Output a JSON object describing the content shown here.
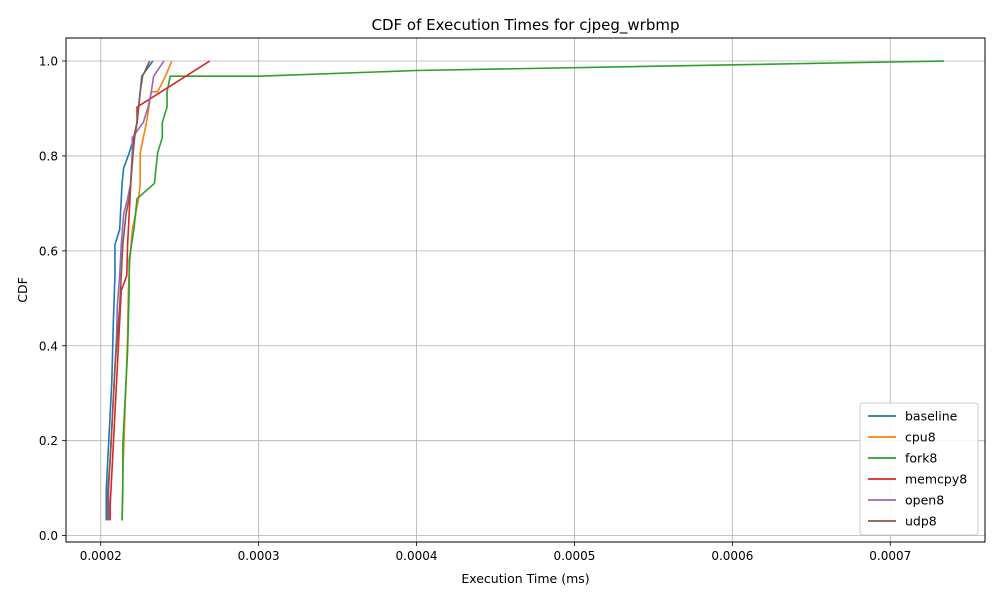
{
  "chart_data": {
    "type": "line",
    "title": "CDF of Execution Times for cjpeg_wrbmp",
    "xlabel": "Execution Time (ms)",
    "ylabel": "CDF",
    "xlim": [
      0.000178,
      0.00076
    ],
    "ylim": [
      -0.0135,
      1.0485
    ],
    "xticks": [
      "0.0002",
      "0.0003",
      "0.0004",
      "0.0005",
      "0.0006",
      "0.0007"
    ],
    "xtick_values": [
      0.0002,
      0.0003,
      0.0004,
      0.0005,
      0.0006,
      0.0007
    ],
    "yticks": [
      "0.0",
      "0.2",
      "0.4",
      "0.6",
      "0.8",
      "1.0"
    ],
    "ytick_values": [
      0.0,
      0.2,
      0.4,
      0.6,
      0.8,
      1.0
    ],
    "grid": true,
    "legend_position": "lower right",
    "series": [
      {
        "name": "baseline",
        "color": "#1f77b4",
        "points": [
          [
            0.0002035,
            0.032
          ],
          [
            0.0002035,
            0.097
          ],
          [
            0.000204,
            0.129
          ],
          [
            0.000205,
            0.194
          ],
          [
            0.000206,
            0.258
          ],
          [
            0.000207,
            0.323
          ],
          [
            0.0002075,
            0.387
          ],
          [
            0.000208,
            0.452
          ],
          [
            0.000209,
            0.548
          ],
          [
            0.000209,
            0.613
          ],
          [
            0.000212,
            0.645
          ],
          [
            0.0002135,
            0.742
          ],
          [
            0.0002145,
            0.774
          ],
          [
            0.000218,
            0.806
          ],
          [
            0.000221,
            0.839
          ],
          [
            0.000223,
            0.871
          ],
          [
            0.000225,
            0.935
          ],
          [
            0.000226,
            0.968
          ],
          [
            0.000233,
            1.0
          ]
        ]
      },
      {
        "name": "cpu8",
        "color": "#ff7f0e",
        "points": [
          [
            0.0002135,
            0.032
          ],
          [
            0.000214,
            0.129
          ],
          [
            0.000215,
            0.226
          ],
          [
            0.000216,
            0.323
          ],
          [
            0.000217,
            0.419
          ],
          [
            0.0002175,
            0.516
          ],
          [
            0.0002185,
            0.581
          ],
          [
            0.00022,
            0.645
          ],
          [
            0.000222,
            0.677
          ],
          [
            0.000224,
            0.71
          ],
          [
            0.000225,
            0.742
          ],
          [
            0.000225,
            0.806
          ],
          [
            0.000227,
            0.839
          ],
          [
            0.000229,
            0.871
          ],
          [
            0.000232,
            0.935
          ],
          [
            0.000236,
            0.935
          ],
          [
            0.000241,
            0.968
          ],
          [
            0.000245,
            1.0
          ]
        ]
      },
      {
        "name": "fork8",
        "color": "#2ca02c",
        "points": [
          [
            0.0002135,
            0.032
          ],
          [
            0.000214,
            0.097
          ],
          [
            0.000214,
            0.194
          ],
          [
            0.000215,
            0.258
          ],
          [
            0.000216,
            0.323
          ],
          [
            0.000217,
            0.387
          ],
          [
            0.0002175,
            0.452
          ],
          [
            0.000218,
            0.516
          ],
          [
            0.000218,
            0.581
          ],
          [
            0.0002195,
            0.613
          ],
          [
            0.000221,
            0.645
          ],
          [
            0.000222,
            0.677
          ],
          [
            0.000223,
            0.71
          ],
          [
            0.000234,
            0.742
          ],
          [
            0.000235,
            0.774
          ],
          [
            0.000236,
            0.806
          ],
          [
            0.000239,
            0.839
          ],
          [
            0.000239,
            0.871
          ],
          [
            0.000242,
            0.903
          ],
          [
            0.000242,
            0.935
          ],
          [
            0.000244,
            0.968
          ],
          [
            0.0003,
            0.968
          ],
          [
            0.0004,
            0.98
          ],
          [
            0.000734,
            1.0
          ]
        ]
      },
      {
        "name": "memcpy8",
        "color": "#d62728",
        "points": [
          [
            0.000206,
            0.032
          ],
          [
            0.000206,
            0.065
          ],
          [
            0.000207,
            0.129
          ],
          [
            0.000208,
            0.194
          ],
          [
            0.000209,
            0.258
          ],
          [
            0.00021,
            0.323
          ],
          [
            0.000211,
            0.387
          ],
          [
            0.000212,
            0.452
          ],
          [
            0.000213,
            0.516
          ],
          [
            0.0002165,
            0.548
          ],
          [
            0.000217,
            0.613
          ],
          [
            0.000218,
            0.677
          ],
          [
            0.000219,
            0.742
          ],
          [
            0.00022,
            0.806
          ],
          [
            0.000221,
            0.839
          ],
          [
            0.000223,
            0.871
          ],
          [
            0.000223,
            0.903
          ],
          [
            0.000269,
            1.0
          ]
        ]
      },
      {
        "name": "open8",
        "color": "#9467bd",
        "points": [
          [
            0.000205,
            0.032
          ],
          [
            0.000205,
            0.097
          ],
          [
            0.000206,
            0.161
          ],
          [
            0.000207,
            0.226
          ],
          [
            0.000208,
            0.29
          ],
          [
            0.000209,
            0.355
          ],
          [
            0.00021,
            0.419
          ],
          [
            0.0002105,
            0.484
          ],
          [
            0.000212,
            0.548
          ],
          [
            0.000213,
            0.613
          ],
          [
            0.0002145,
            0.677
          ],
          [
            0.000217,
            0.71
          ],
          [
            0.000219,
            0.742
          ],
          [
            0.00022,
            0.806
          ],
          [
            0.00022,
            0.839
          ],
          [
            0.000227,
            0.871
          ],
          [
            0.00023,
            0.903
          ],
          [
            0.000232,
            0.935
          ],
          [
            0.0002335,
            0.968
          ],
          [
            0.00024,
            1.0
          ]
        ]
      },
      {
        "name": "udp8",
        "color": "#8c564b",
        "points": [
          [
            0.0002045,
            0.032
          ],
          [
            0.0002045,
            0.097
          ],
          [
            0.000206,
            0.161
          ],
          [
            0.000207,
            0.226
          ],
          [
            0.000208,
            0.29
          ],
          [
            0.000209,
            0.355
          ],
          [
            0.0002105,
            0.419
          ],
          [
            0.000212,
            0.484
          ],
          [
            0.000213,
            0.548
          ],
          [
            0.000214,
            0.613
          ],
          [
            0.000216,
            0.677
          ],
          [
            0.000218,
            0.71
          ],
          [
            0.000219,
            0.742
          ],
          [
            0.0002205,
            0.806
          ],
          [
            0.0002215,
            0.839
          ],
          [
            0.000223,
            0.871
          ],
          [
            0.000224,
            0.903
          ],
          [
            0.000225,
            0.935
          ],
          [
            0.0002265,
            0.968
          ],
          [
            0.000231,
            1.0
          ]
        ]
      }
    ]
  }
}
